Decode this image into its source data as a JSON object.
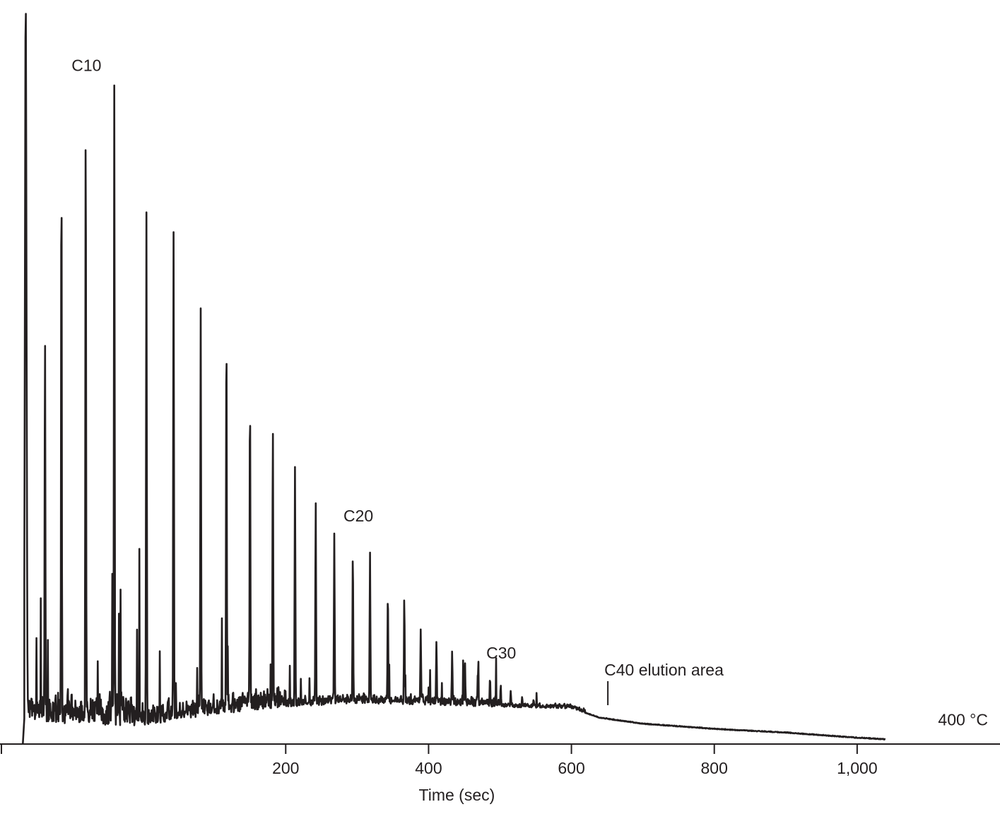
{
  "chart_data": {
    "type": "line",
    "title": "",
    "xlabel": "Time (sec)",
    "ylabel": "",
    "xlim": [
      -200,
      1200
    ],
    "ylim": [
      0,
      1
    ],
    "grid": false,
    "x_ticks": [
      {
        "value": 200,
        "label": "200"
      },
      {
        "value": 400,
        "label": "400"
      },
      {
        "value": 600,
        "label": "600"
      },
      {
        "value": 800,
        "label": "800"
      },
      {
        "value": 1000,
        "label": "1,000"
      }
    ],
    "colors": {
      "line": "#231f20",
      "axis": "#231f20",
      "text": "#231f20"
    },
    "major_peaks": [
      {
        "x": -164,
        "y": 1.0
      },
      {
        "x": -137,
        "y": 0.56
      },
      {
        "x": -114,
        "y": 0.8
      },
      {
        "x": -80,
        "y": 0.865
      },
      {
        "x": -40,
        "y": 0.892
      },
      {
        "x": 5,
        "y": 0.72
      },
      {
        "x": 43,
        "y": 0.69
      },
      {
        "x": 81,
        "y": 0.59
      },
      {
        "x": 117,
        "y": 0.575
      },
      {
        "x": 150,
        "y": 0.48
      },
      {
        "x": 182,
        "y": 0.435
      },
      {
        "x": 213,
        "y": 0.375
      },
      {
        "x": 242,
        "y": 0.33
      },
      {
        "x": 268,
        "y": 0.285
      },
      {
        "x": 294,
        "y": 0.262
      },
      {
        "x": 318,
        "y": 0.258
      },
      {
        "x": 343,
        "y": 0.207
      },
      {
        "x": 366,
        "y": 0.2
      },
      {
        "x": 389,
        "y": 0.155
      },
      {
        "x": 411,
        "y": 0.138
      },
      {
        "x": 433,
        "y": 0.125
      },
      {
        "x": 451,
        "y": 0.11
      },
      {
        "x": 469,
        "y": 0.1
      },
      {
        "x": 486,
        "y": 0.09
      },
      {
        "x": 501,
        "y": 0.08
      },
      {
        "x": 515,
        "y": 0.072
      },
      {
        "x": 531,
        "y": 0.064
      },
      {
        "x": 547,
        "y": 0.06
      }
    ],
    "baseline": [
      {
        "x": -170,
        "y": 0.035
      },
      {
        "x": -100,
        "y": 0.025
      },
      {
        "x": 0,
        "y": 0.025
      },
      {
        "x": 100,
        "y": 0.04
      },
      {
        "x": 200,
        "y": 0.05
      },
      {
        "x": 300,
        "y": 0.055
      },
      {
        "x": 400,
        "y": 0.053
      },
      {
        "x": 500,
        "y": 0.05
      },
      {
        "x": 600,
        "y": 0.048
      },
      {
        "x": 640,
        "y": 0.035
      },
      {
        "x": 700,
        "y": 0.027
      },
      {
        "x": 800,
        "y": 0.02
      },
      {
        "x": 900,
        "y": 0.015
      },
      {
        "x": 1000,
        "y": 0.008
      },
      {
        "x": 1040,
        "y": 0.006
      }
    ],
    "annotations": [
      {
        "label": "C10",
        "x": -80,
        "y": 0.892
      },
      {
        "label": "C20",
        "x": 269,
        "y": 0.285
      },
      {
        "label": "C30",
        "x": 469,
        "y": 0.1
      },
      {
        "label": "C40 elution area",
        "x": 651,
        "y": 0.06
      },
      {
        "label": "400 °C",
        "x": 1030,
        "y": 0.01
      }
    ]
  }
}
